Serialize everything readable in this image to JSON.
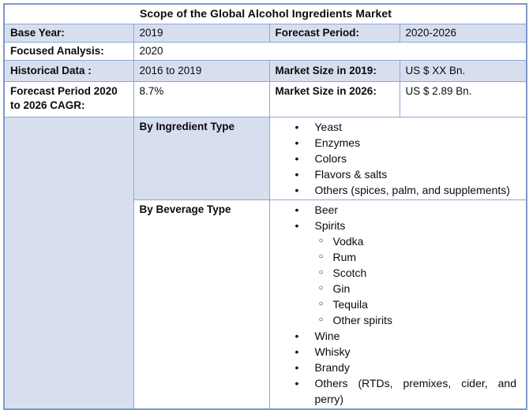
{
  "title": "Scope of the Global Alcohol Ingredients Market",
  "colors": {
    "cell_blue": "#d7dfef",
    "border": "#8ca8d4",
    "outer_border": "#7e99c8",
    "text": "#0b0b0b"
  },
  "rows": {
    "base_year": {
      "label": "Base Year:",
      "value": "2019"
    },
    "forecast_period": {
      "label": "Forecast Period:",
      "value": "2020-2026"
    },
    "focused_analysis": {
      "label": "Focused Analysis:",
      "value": "2020"
    },
    "historical_data": {
      "label": "Historical Data :",
      "value": "2016 to 2019"
    },
    "market_size_2019": {
      "label": "Market Size in 2019:",
      "value": "US $ XX Bn."
    },
    "cagr": {
      "label": "Forecast Period 2020 to 2026 CAGR:",
      "value": "8.7%"
    },
    "market_size_2026": {
      "label": "Market Size in 2026:",
      "value": "US $ 2.89 Bn."
    }
  },
  "bullet_glyphs": {
    "level1": "•",
    "level2": "○"
  },
  "segments": [
    {
      "label": "By Ingredient Type",
      "items": [
        {
          "level": 1,
          "text": "Yeast"
        },
        {
          "level": 1,
          "text": "Enzymes"
        },
        {
          "level": 1,
          "text": "Colors"
        },
        {
          "level": 1,
          "text": "Flavors & salts"
        },
        {
          "level": 1,
          "text": "Others (spices, palm, and supplements)"
        }
      ]
    },
    {
      "label": "By Beverage Type",
      "items": [
        {
          "level": 1,
          "text": "Beer"
        },
        {
          "level": 1,
          "text": "Spirits"
        },
        {
          "level": 2,
          "text": "Vodka"
        },
        {
          "level": 2,
          "text": "Rum"
        },
        {
          "level": 2,
          "text": "Scotch"
        },
        {
          "level": 2,
          "text": "Gin"
        },
        {
          "level": 2,
          "text": "Tequila"
        },
        {
          "level": 2,
          "text": "Other spirits"
        },
        {
          "level": 1,
          "text": "Wine"
        },
        {
          "level": 1,
          "text": "Whisky"
        },
        {
          "level": 1,
          "text": "Brandy"
        },
        {
          "level": 1,
          "text": "Others (RTDs, premixes, cider, and perry)"
        }
      ]
    }
  ]
}
